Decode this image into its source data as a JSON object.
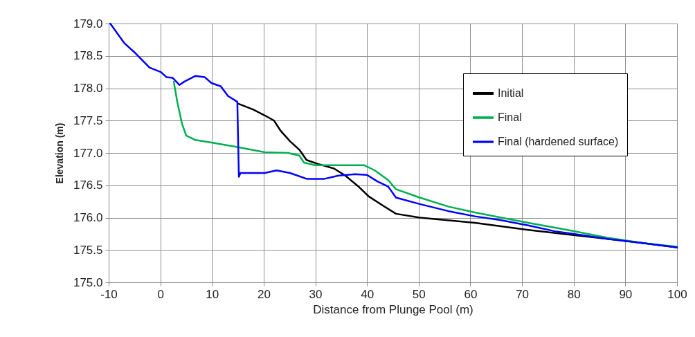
{
  "chart_data": {
    "type": "line",
    "xlabel": "Distance from Plunge Pool (m)",
    "ylabel": "Elevation (m)",
    "xlim": [
      -10,
      100
    ],
    "xticks": [
      -10,
      0,
      10,
      20,
      30,
      40,
      50,
      60,
      70,
      80,
      90,
      100
    ],
    "ylim": [
      175,
      179
    ],
    "yticks": [
      {
        "value": 175,
        "label": "175.0"
      },
      {
        "value": 175.5,
        "label": "175.5"
      },
      {
        "value": 176,
        "label": "176.0"
      },
      {
        "value": 176.5,
        "label": "176.5"
      },
      {
        "value": 177,
        "label": "177.0"
      },
      {
        "value": 177.5,
        "label": "177.5"
      },
      {
        "value": 178,
        "label": "178.0"
      },
      {
        "value": 178.5,
        "label": "178.5"
      },
      {
        "value": 179,
        "label": "179.0"
      }
    ],
    "grid": true,
    "legend": "top right",
    "line_style": "solid",
    "series": [
      {
        "name": "Initial",
        "color": "#000000",
        "x": [
          15.1,
          18,
          20.2,
          22,
          23.3,
          25.1,
          26.9,
          28.3,
          30.5,
          33.6,
          35.8,
          38.5,
          40.3,
          43,
          45.6,
          50.2,
          60.9,
          71.2,
          80,
          89.1,
          100
        ],
        "values": [
          177.76,
          177.67,
          177.58,
          177.5,
          177.34,
          177.18,
          177.05,
          176.89,
          176.83,
          176.76,
          176.65,
          176.47,
          176.33,
          176.19,
          176.06,
          176.0,
          175.92,
          175.81,
          175.73,
          175.65,
          175.54
        ]
      },
      {
        "name": "Final",
        "color": "#00b050",
        "x": [
          2.6,
          3.3,
          4.2,
          5,
          6.8,
          9.9,
          14.9,
          20.2,
          24.7,
          26.9,
          27.8,
          30,
          32.8,
          39.5,
          41.5,
          44.1,
          45.6,
          50.2,
          55.8,
          60.9,
          66,
          71.2,
          78.8,
          86.5,
          94.2,
          100
        ],
        "values": [
          178.1,
          177.78,
          177.45,
          177.27,
          177.2,
          177.16,
          177.09,
          177.01,
          177.0,
          176.96,
          176.85,
          176.81,
          176.81,
          176.81,
          176.73,
          176.58,
          176.44,
          176.31,
          176.17,
          176.08,
          176.0,
          175.92,
          175.81,
          175.69,
          175.6,
          175.55
        ]
      },
      {
        "name": "Final (hardened surface)",
        "color": "#0000ff",
        "x": [
          -9.7,
          -7,
          -4.8,
          -2.1,
          0.1,
          1.2,
          2.4,
          3.7,
          4.6,
          6.8,
          8.6,
          9.9,
          11.7,
          13.1,
          14.9,
          15.2,
          15.5,
          20.2,
          22.5,
          25.1,
          28.3,
          31.8,
          34.5,
          37.6,
          40,
          42,
          44.1,
          45.6,
          50.2,
          55.8,
          60.9,
          66,
          71.2,
          76.3,
          80,
          86.5,
          94.2,
          100
        ],
        "values": [
          179.0,
          178.7,
          178.54,
          178.32,
          178.25,
          178.17,
          178.16,
          178.05,
          178.1,
          178.19,
          178.17,
          178.08,
          178.03,
          177.88,
          177.79,
          176.63,
          176.69,
          176.69,
          176.73,
          176.69,
          176.6,
          176.6,
          176.65,
          176.67,
          176.66,
          176.56,
          176.48,
          176.31,
          176.21,
          176.1,
          176.02,
          175.96,
          175.88,
          175.79,
          175.75,
          175.67,
          175.6,
          175.54
        ]
      }
    ]
  }
}
